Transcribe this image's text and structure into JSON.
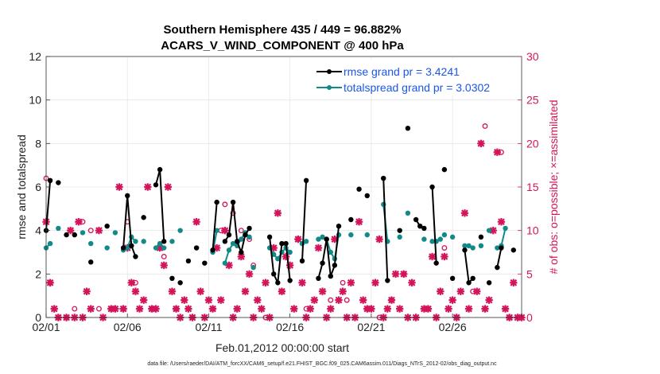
{
  "chart_data": {
    "type": "line",
    "title": "Southern Hemisphere 435 / 449 = 96.882%",
    "subtitle": "ACARS_V_WIND_COMPONENT @ 400 hPa",
    "xlabel": "Feb.01,2012 00:00:00 start",
    "ylabel": "rmse and totalspread",
    "ylabel_right": "# of obs: o=possible; ×=assimilated",
    "footer": "data file: /Users/raeder/DAI/ATM_forcXX/CAM6_setup/f.e21.FHIST_BGC.f09_025.CAM6assim.011/Diags_NTrS_2012-02/obs_diag_output.nc",
    "xlim": [
      1,
      30.25
    ],
    "ylim": [
      0,
      12
    ],
    "ylim_right": [
      0,
      30
    ],
    "x_ticks": [
      1,
      6,
      11,
      16,
      21,
      26
    ],
    "x_tick_labels": [
      "02/01",
      "02/06",
      "02/11",
      "02/16",
      "02/21",
      "02/26"
    ],
    "y_ticks": [
      0,
      2,
      4,
      6,
      8,
      10,
      12
    ],
    "y_ticks_right": [
      0,
      5,
      10,
      15,
      20,
      25,
      30
    ],
    "legend": {
      "position": "top-right",
      "entries": [
        {
          "label": "rmse grand pr = 3.4241",
          "color": "#000000"
        },
        {
          "label": "totalspread grand pr = 3.0302",
          "color": "#128a88"
        }
      ]
    },
    "series": [
      {
        "name": "rmse",
        "color": "#000000",
        "segments": [
          [
            [
              1.0,
              4.0
            ],
            [
              1.25,
              6.3
            ]
          ],
          [
            [
              1.75,
              6.2
            ]
          ],
          [
            [
              2.25,
              3.8
            ]
          ],
          [
            [
              2.75,
              3.8
            ]
          ],
          [
            [
              3.75,
              2.55
            ]
          ],
          [
            [
              4.75,
              4.2
            ]
          ],
          [
            [
              5.75,
              3.2
            ],
            [
              6.0,
              5.6
            ],
            [
              6.25,
              3.3
            ],
            [
              6.5,
              2.8
            ]
          ],
          [
            [
              7.0,
              4.6
            ]
          ],
          [
            [
              7.75,
              6.1
            ],
            [
              8.0,
              6.8
            ],
            [
              8.25,
              3.5
            ]
          ],
          [
            [
              8.75,
              1.8
            ]
          ],
          [
            [
              9.25,
              1.6
            ]
          ],
          [
            [
              9.75,
              2.6
            ]
          ],
          [
            [
              10.25,
              3.2
            ]
          ],
          [
            [
              10.75,
              2.5
            ]
          ],
          [
            [
              11.25,
              3.1
            ],
            [
              11.5,
              5.3
            ]
          ],
          [
            [
              12.0,
              3.5
            ],
            [
              12.25,
              3.8
            ],
            [
              12.5,
              5.3
            ],
            [
              12.75,
              3.5
            ],
            [
              13.0,
              3.0
            ],
            [
              13.25,
              3.8
            ],
            [
              13.5,
              4.1
            ]
          ],
          [
            [
              14.75,
              3.7
            ],
            [
              15.0,
              2.0
            ],
            [
              15.25,
              1.6
            ],
            [
              15.5,
              3.4
            ],
            [
              15.75,
              3.4
            ],
            [
              16.0,
              1.7
            ]
          ],
          [
            [
              16.75,
              2.6
            ],
            [
              17.0,
              6.3
            ]
          ],
          [
            [
              17.75,
              1.8
            ],
            [
              18.0,
              2.5
            ],
            [
              18.25,
              3.6
            ],
            [
              18.5,
              1.9
            ],
            [
              18.75,
              2.4
            ],
            [
              19.0,
              4.2
            ]
          ],
          [
            [
              19.75,
              4.5
            ]
          ],
          [
            [
              20.25,
              5.9
            ]
          ],
          [
            [
              20.75,
              5.6
            ]
          ],
          [
            [
              21.75,
              6.4
            ],
            [
              22.0,
              1.7
            ]
          ],
          [
            [
              22.75,
              4.0
            ]
          ],
          [
            [
              23.25,
              8.7
            ]
          ],
          [
            [
              23.75,
              4.5
            ],
            [
              24.0,
              4.2
            ],
            [
              24.25,
              4.1
            ]
          ],
          [
            [
              24.75,
              6.0
            ],
            [
              25.0,
              2.5
            ]
          ],
          [
            [
              25.5,
              6.8
            ]
          ],
          [
            [
              26.0,
              1.8
            ]
          ],
          [
            [
              26.75,
              3.1
            ],
            [
              27.0,
              1.6
            ],
            [
              27.25,
              1.8
            ]
          ],
          [
            [
              27.75,
              3.7
            ]
          ],
          [
            [
              28.25,
              1.6
            ]
          ],
          [
            [
              28.75,
              2.3
            ],
            [
              29.0,
              3.2
            ]
          ],
          [
            [
              29.75,
              3.1
            ]
          ]
        ]
      },
      {
        "name": "totalspread",
        "color": "#128a88",
        "segments": [
          [
            [
              1.0,
              3.2
            ],
            [
              1.25,
              3.4
            ]
          ],
          [
            [
              1.75,
              4.1
            ]
          ],
          [
            [
              3.25,
              3.9
            ]
          ],
          [
            [
              3.75,
              3.4
            ]
          ],
          [
            [
              4.75,
              3.2
            ]
          ],
          [
            [
              5.25,
              3.9
            ]
          ],
          [
            [
              5.75,
              3.1
            ],
            [
              6.0,
              3.2
            ],
            [
              6.25,
              3.7
            ],
            [
              6.5,
              3.5
            ]
          ],
          [
            [
              7.0,
              3.5
            ]
          ],
          [
            [
              7.75,
              3.2
            ],
            [
              8.0,
              3.4
            ],
            [
              8.25,
              3.2
            ]
          ],
          [
            [
              8.75,
              3.5
            ]
          ],
          [
            [
              9.25,
              4.0
            ]
          ],
          [
            [
              10.25,
              3.2
            ]
          ],
          [
            [
              11.25,
              3.0
            ],
            [
              11.5,
              4.0
            ]
          ],
          [
            [
              12.0,
              2.5
            ],
            [
              12.25,
              3.1
            ],
            [
              12.5,
              3.4
            ],
            [
              12.75,
              3.3
            ],
            [
              13.0,
              3.6
            ],
            [
              13.25,
              3.9
            ],
            [
              13.5,
              3.7
            ]
          ],
          [
            [
              13.75,
              2.3
            ]
          ],
          [
            [
              14.75,
              3.2
            ],
            [
              15.0,
              2.9
            ],
            [
              15.25,
              2.7
            ],
            [
              15.5,
              3.0
            ],
            [
              15.75,
              3.2
            ],
            [
              16.0,
              3.0
            ]
          ],
          [
            [
              16.75,
              3.4
            ],
            [
              17.0,
              3.5
            ]
          ],
          [
            [
              17.75,
              3.6
            ],
            [
              18.0,
              3.7
            ],
            [
              18.25,
              3.6
            ],
            [
              18.5,
              3.0
            ],
            [
              18.75,
              2.7
            ],
            [
              19.0,
              3.8
            ]
          ],
          [
            [
              19.75,
              3.8
            ]
          ],
          [
            [
              20.75,
              3.8
            ]
          ],
          [
            [
              21.75,
              5.2
            ],
            [
              22.0,
              3.5
            ]
          ],
          [
            [
              22.75,
              3.7
            ]
          ],
          [
            [
              23.25,
              4.8
            ]
          ],
          [
            [
              24.25,
              3.6
            ]
          ],
          [
            [
              24.75,
              3.5
            ],
            [
              25.0,
              3.5
            ],
            [
              25.25,
              3.6
            ]
          ],
          [
            [
              25.5,
              3.8
            ]
          ],
          [
            [
              26.0,
              3.7
            ]
          ],
          [
            [
              26.75,
              3.3
            ],
            [
              27.0,
              3.3
            ],
            [
              27.25,
              3.2
            ]
          ],
          [
            [
              27.75,
              3.3
            ]
          ],
          [
            [
              28.25,
              4.0
            ]
          ],
          [
            [
              28.75,
              3.2
            ],
            [
              29.0,
              3.3
            ],
            [
              29.25,
              4.1
            ]
          ]
        ]
      }
    ],
    "obs_possible": {
      "marker": "o",
      "color": "#d4145a",
      "points": [
        [
          1.0,
          16
        ],
        [
          1.25,
          4
        ],
        [
          1.75,
          0
        ],
        [
          2.25,
          0
        ],
        [
          2.75,
          1
        ],
        [
          3.25,
          11
        ],
        [
          3.75,
          10
        ],
        [
          4.25,
          1
        ],
        [
          5.0,
          1
        ],
        [
          5.75,
          1
        ],
        [
          6.0,
          11
        ],
        [
          6.5,
          4
        ],
        [
          7.5,
          1
        ],
        [
          8.0,
          8
        ],
        [
          8.25,
          7
        ],
        [
          9.0,
          1
        ],
        [
          10.0,
          0
        ],
        [
          11.25,
          1
        ],
        [
          11.75,
          10
        ],
        [
          12.0,
          13
        ],
        [
          12.5,
          12
        ],
        [
          13.0,
          10
        ],
        [
          13.5,
          9
        ],
        [
          13.75,
          6
        ],
        [
          14.5,
          0
        ],
        [
          15.5,
          3
        ],
        [
          16.5,
          9
        ],
        [
          17.0,
          1
        ],
        [
          18.5,
          2
        ],
        [
          19.25,
          4
        ],
        [
          19.5,
          2
        ],
        [
          20.75,
          1
        ],
        [
          21.5,
          0
        ],
        [
          22.25,
          2
        ],
        [
          23.0,
          5
        ],
        [
          24.5,
          1
        ],
        [
          25.5,
          8
        ],
        [
          26.25,
          0
        ],
        [
          27.25,
          3
        ],
        [
          28.0,
          22
        ],
        [
          29.0,
          19
        ],
        [
          29.5,
          0
        ]
      ]
    },
    "obs_assimilated": {
      "marker": "x",
      "color": "#d4145a",
      "points": [
        [
          1.0,
          11
        ],
        [
          1.25,
          4
        ],
        [
          1.5,
          1
        ],
        [
          1.75,
          0
        ],
        [
          2.25,
          0
        ],
        [
          2.5,
          10
        ],
        [
          2.75,
          0
        ],
        [
          3.0,
          11
        ],
        [
          3.25,
          0
        ],
        [
          3.5,
          3
        ],
        [
          3.75,
          1
        ],
        [
          4.25,
          10
        ],
        [
          4.5,
          0
        ],
        [
          5.0,
          1
        ],
        [
          5.25,
          1
        ],
        [
          5.5,
          15
        ],
        [
          5.75,
          1
        ],
        [
          6.0,
          8
        ],
        [
          6.25,
          4
        ],
        [
          6.5,
          3
        ],
        [
          6.75,
          1
        ],
        [
          7.0,
          2
        ],
        [
          7.25,
          15
        ],
        [
          7.5,
          1
        ],
        [
          7.75,
          1
        ],
        [
          8.0,
          8
        ],
        [
          8.25,
          6
        ],
        [
          8.5,
          15
        ],
        [
          8.75,
          3
        ],
        [
          9.0,
          1
        ],
        [
          9.25,
          0
        ],
        [
          9.5,
          2
        ],
        [
          9.75,
          1
        ],
        [
          10.0,
          0
        ],
        [
          10.25,
          11
        ],
        [
          10.5,
          3
        ],
        [
          10.75,
          0
        ],
        [
          11.0,
          2
        ],
        [
          11.25,
          1
        ],
        [
          11.5,
          8
        ],
        [
          11.75,
          2
        ],
        [
          12.0,
          10
        ],
        [
          12.25,
          6
        ],
        [
          12.5,
          0
        ],
        [
          12.75,
          1
        ],
        [
          13.0,
          7
        ],
        [
          13.25,
          3
        ],
        [
          13.5,
          5
        ],
        [
          13.75,
          0
        ],
        [
          14.0,
          2
        ],
        [
          14.25,
          1
        ],
        [
          14.5,
          4
        ],
        [
          14.75,
          0
        ],
        [
          15.0,
          8
        ],
        [
          15.25,
          12
        ],
        [
          15.5,
          3
        ],
        [
          15.75,
          7
        ],
        [
          16.0,
          6
        ],
        [
          16.25,
          1
        ],
        [
          16.5,
          9
        ],
        [
          16.75,
          4
        ],
        [
          17.0,
          0
        ],
        [
          17.25,
          1
        ],
        [
          17.5,
          2
        ],
        [
          17.75,
          8
        ],
        [
          18.0,
          3
        ],
        [
          18.25,
          0
        ],
        [
          18.5,
          1
        ],
        [
          18.75,
          9
        ],
        [
          19.0,
          2
        ],
        [
          19.25,
          3
        ],
        [
          19.5,
          0
        ],
        [
          19.75,
          4
        ],
        [
          20.0,
          0
        ],
        [
          20.25,
          11
        ],
        [
          20.5,
          2
        ],
        [
          20.75,
          1
        ],
        [
          21.0,
          1
        ],
        [
          21.25,
          4
        ],
        [
          21.5,
          9
        ],
        [
          21.75,
          0
        ],
        [
          22.0,
          1
        ],
        [
          22.25,
          2
        ],
        [
          22.5,
          5
        ],
        [
          22.75,
          1
        ],
        [
          23.0,
          5
        ],
        [
          23.25,
          0
        ],
        [
          23.5,
          4
        ],
        [
          23.75,
          0
        ],
        [
          24.25,
          1
        ],
        [
          24.5,
          1
        ],
        [
          24.75,
          7
        ],
        [
          25.0,
          0
        ],
        [
          25.25,
          3
        ],
        [
          25.5,
          7
        ],
        [
          25.75,
          1
        ],
        [
          26.0,
          2
        ],
        [
          26.25,
          0
        ],
        [
          26.5,
          3
        ],
        [
          26.75,
          12
        ],
        [
          27.0,
          1
        ],
        [
          27.5,
          3
        ],
        [
          27.75,
          20
        ],
        [
          28.0,
          1
        ],
        [
          28.25,
          2
        ],
        [
          28.5,
          10
        ],
        [
          28.75,
          19
        ],
        [
          29.0,
          11
        ],
        [
          29.25,
          1
        ],
        [
          29.5,
          0
        ],
        [
          29.75,
          4
        ],
        [
          30.0,
          0
        ],
        [
          30.25,
          0
        ]
      ]
    }
  }
}
